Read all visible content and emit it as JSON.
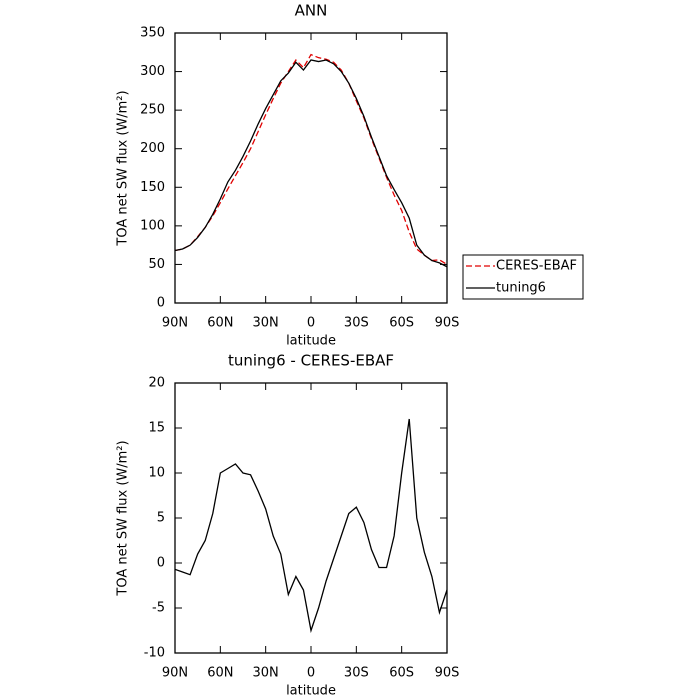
{
  "chart_data": [
    {
      "type": "line",
      "title": "ANN",
      "xlabel": "latitude",
      "ylabel": "TOA net SW flux (W/m²)",
      "x": [
        90,
        85,
        80,
        75,
        70,
        65,
        60,
        55,
        50,
        45,
        40,
        35,
        30,
        25,
        20,
        15,
        10,
        5,
        0,
        -5,
        -10,
        -15,
        -20,
        -25,
        -30,
        -35,
        -40,
        -45,
        -50,
        -55,
        -60,
        -65,
        -70,
        -75,
        -80,
        -85,
        -90
      ],
      "series": [
        {
          "name": "CERES-EBAF",
          "color": "#e00000",
          "dashed": true,
          "values": [
            68,
            70,
            75,
            86,
            98,
            113,
            130,
            148,
            165,
            182,
            200,
            222,
            244,
            265,
            285,
            300,
            315,
            305,
            322,
            318,
            316,
            312,
            302,
            285,
            262,
            240,
            213,
            188,
            163,
            140,
            120,
            92,
            70,
            62,
            55,
            56,
            50
          ]
        },
        {
          "name": "tuning6",
          "color": "#000000",
          "dashed": false,
          "values": [
            68,
            70,
            75,
            85,
            98,
            115,
            135,
            157,
            172,
            190,
            210,
            232,
            252,
            270,
            288,
            298,
            312,
            302,
            315,
            313,
            315,
            310,
            300,
            285,
            265,
            242,
            215,
            190,
            165,
            147,
            130,
            110,
            75,
            62,
            55,
            52,
            47
          ]
        }
      ],
      "xlim": [
        90,
        -90
      ],
      "ylim": [
        0,
        350
      ],
      "xticks": [
        {
          "value": 90,
          "label": "90N"
        },
        {
          "value": 60,
          "label": "60N"
        },
        {
          "value": 30,
          "label": "30N"
        },
        0,
        {
          "value": -30,
          "label": "30S"
        },
        {
          "value": -60,
          "label": "60S"
        },
        {
          "value": -90,
          "label": "90S"
        }
      ],
      "yticks": [
        0,
        50,
        100,
        150,
        200,
        250,
        300,
        350
      ],
      "legend": "outside-right"
    },
    {
      "type": "line",
      "title": "tuning6 - CERES-EBAF",
      "xlabel": "latitude",
      "ylabel": "TOA net SW flux (W/m²)",
      "x": [
        90,
        85,
        80,
        75,
        70,
        65,
        60,
        55,
        50,
        45,
        40,
        35,
        30,
        25,
        20,
        15,
        10,
        5,
        0,
        -5,
        -10,
        -15,
        -20,
        -25,
        -30,
        -35,
        -40,
        -45,
        -50,
        -55,
        -60,
        -65,
        -70,
        -75,
        -80,
        -85,
        -90
      ],
      "series": [
        {
          "color": "#000000",
          "dashed": false,
          "values": [
            -0.7,
            -1,
            -1.3,
            1,
            2.5,
            5.5,
            10,
            10.5,
            11,
            10,
            9.8,
            8,
            6,
            3,
            1,
            -3.5,
            -1.5,
            -3,
            -7.5,
            -5,
            -2,
            0.5,
            3,
            5.5,
            6.2,
            4.5,
            1.5,
            -0.5,
            -0.5,
            3,
            10,
            16,
            5,
            1.2,
            -1.5,
            -5.5,
            -3
          ]
        }
      ],
      "xlim": [
        90,
        -90
      ],
      "ylim": [
        -10,
        20
      ],
      "xticks": [
        {
          "value": 90,
          "label": "90N"
        },
        {
          "value": 60,
          "label": "60N"
        },
        {
          "value": 30,
          "label": "30N"
        },
        0,
        {
          "value": -30,
          "label": "30S"
        },
        {
          "value": -60,
          "label": "60S"
        },
        {
          "value": -90,
          "label": "90S"
        }
      ],
      "yticks": [
        -10,
        -5,
        0,
        5,
        10,
        15,
        20
      ]
    }
  ]
}
